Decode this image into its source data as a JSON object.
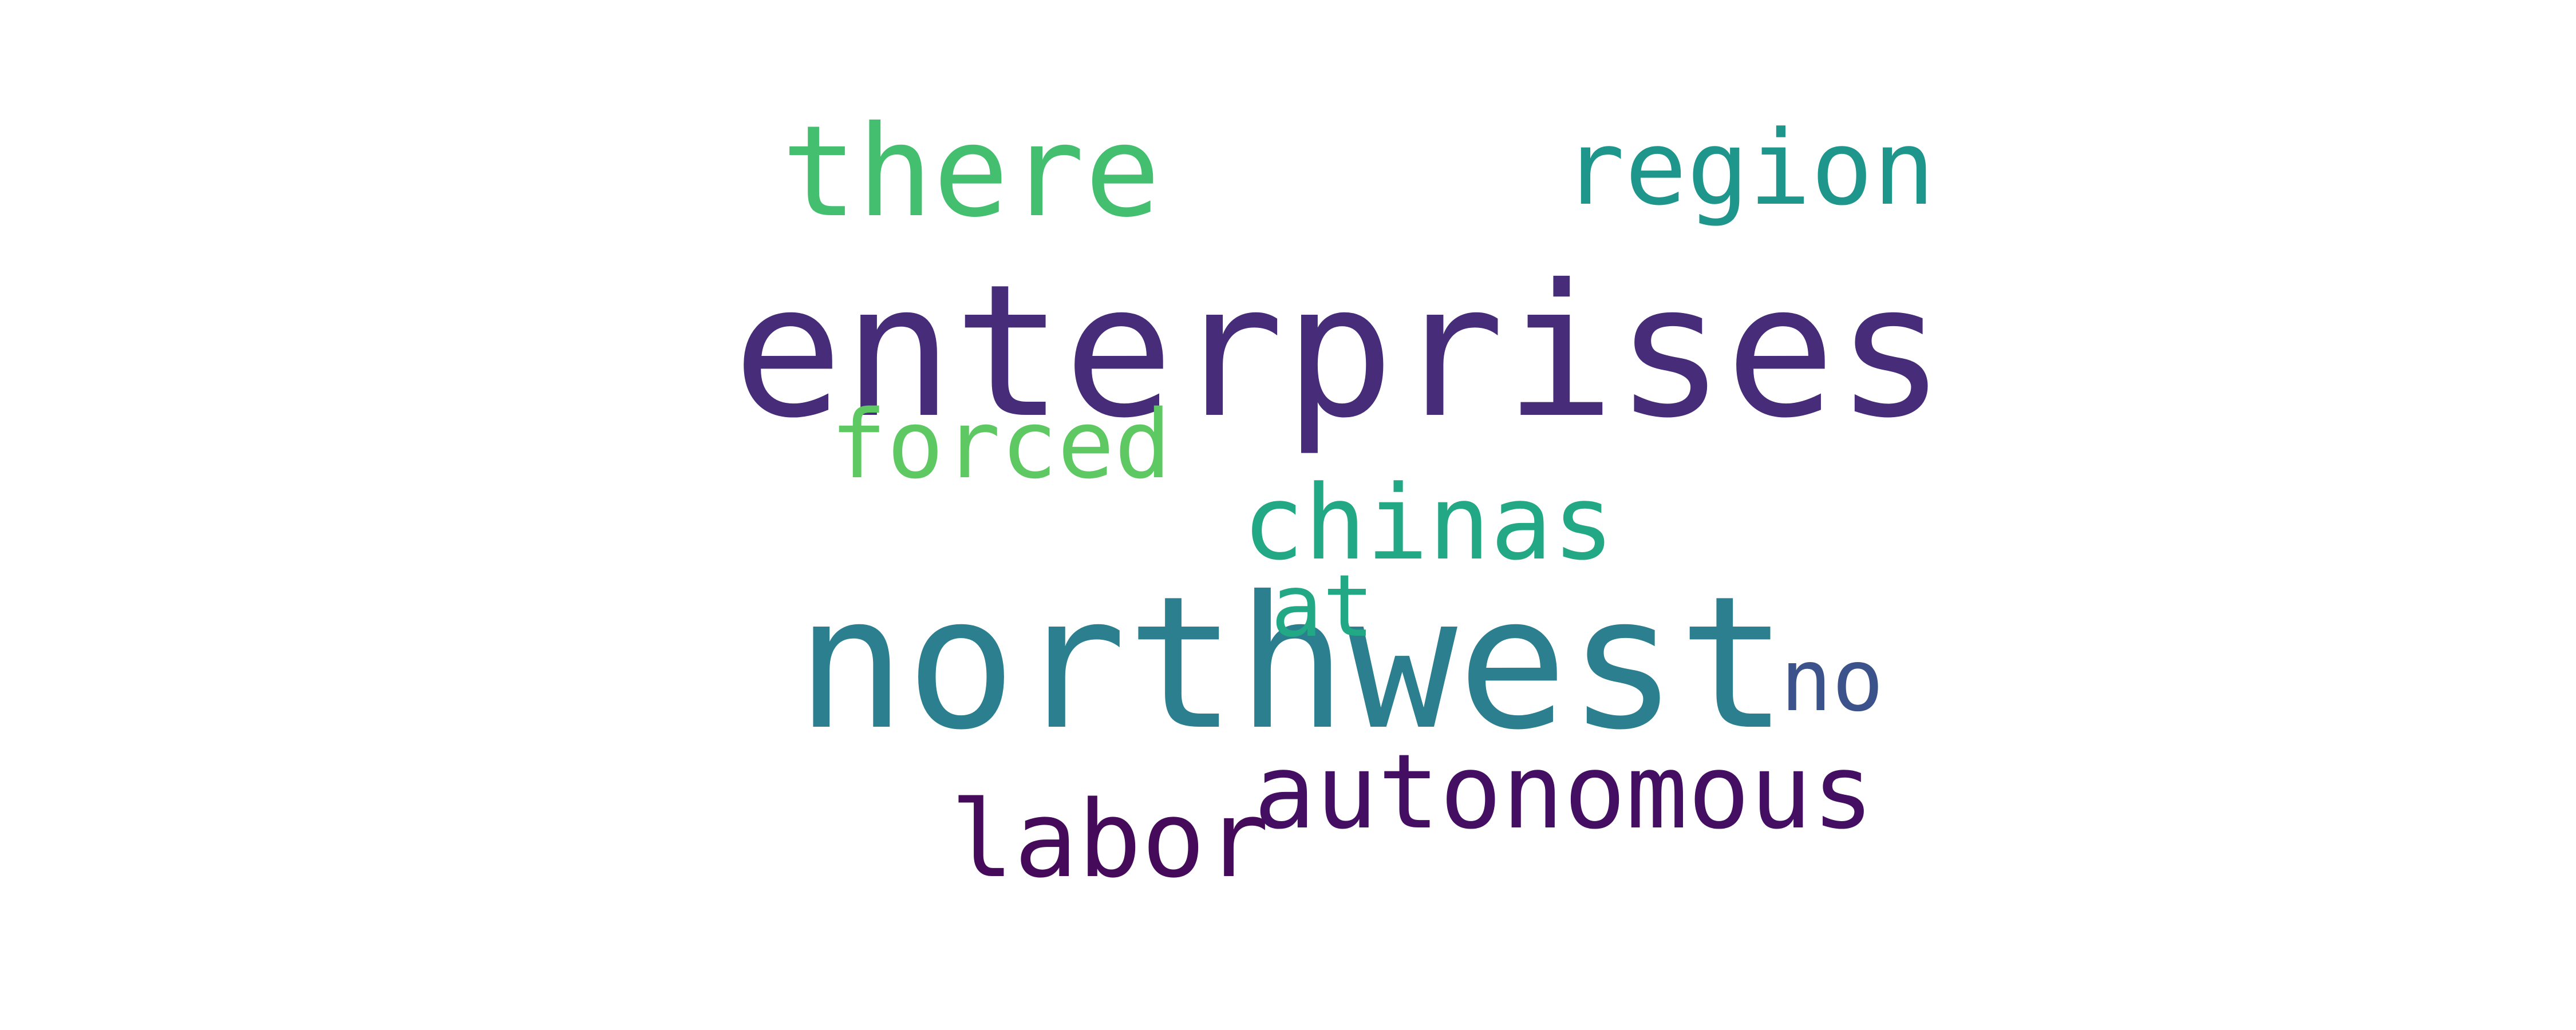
{
  "wordcloud": {
    "words": [
      {
        "key": "enterprises",
        "text": "enterprises",
        "color": "#472c7a"
      },
      {
        "key": "northwest",
        "text": "northwest",
        "color": "#2c7f8e"
      },
      {
        "key": "there",
        "text": "there",
        "color": "#44bf70"
      },
      {
        "key": "region",
        "text": "region",
        "color": "#1f968b"
      },
      {
        "key": "forced",
        "text": "forced",
        "color": "#5ec962"
      },
      {
        "key": "chinas",
        "text": "chinas",
        "color": "#22a884"
      },
      {
        "key": "at",
        "text": "at",
        "color": "#22a884"
      },
      {
        "key": "no",
        "text": "no",
        "color": "#3b528b"
      },
      {
        "key": "autonomous",
        "text": "autonomous",
        "color": "#440f62"
      },
      {
        "key": "labor",
        "text": "labor",
        "color": "#450b5a"
      }
    ]
  }
}
